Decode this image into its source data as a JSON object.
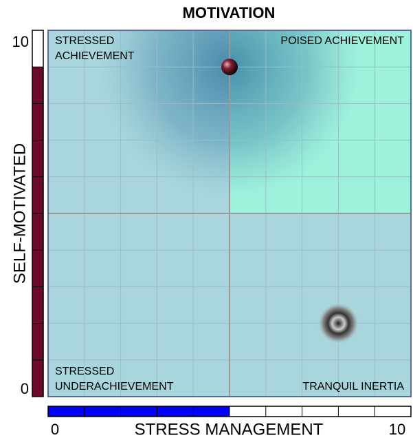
{
  "chart_data": {
    "type": "scatter",
    "title": "MOTIVATION",
    "x_label": "STRESS MANAGEMENT",
    "y_label": "SELF-MOTIVATED",
    "xlim": [
      0,
      10
    ],
    "ylim": [
      0,
      10
    ],
    "xticks": [
      0,
      10
    ],
    "yticks": [
      0,
      10
    ],
    "gridlines": [
      1,
      2,
      3,
      4,
      5,
      6,
      7,
      8,
      9
    ],
    "quadrant_labels": [
      [
        "STRESSED",
        "ACHIEVEMENT"
      ],
      [
        "POISED ACHIEVEMENT"
      ],
      [
        "STRESSED",
        "UNDERACHIEVEMENT"
      ],
      [
        "TRANQUIL INERTIA"
      ]
    ],
    "points": {
      "x": [
        5,
        8
      ],
      "y": [
        9,
        2
      ]
    },
    "x_score": 5,
    "x_score_color": "#0000ff",
    "y_score": 9,
    "y_score_color": "#6b0a2a",
    "quadrant_color": "#a9d6dc",
    "highlight_color": "#9ef2dc"
  }
}
